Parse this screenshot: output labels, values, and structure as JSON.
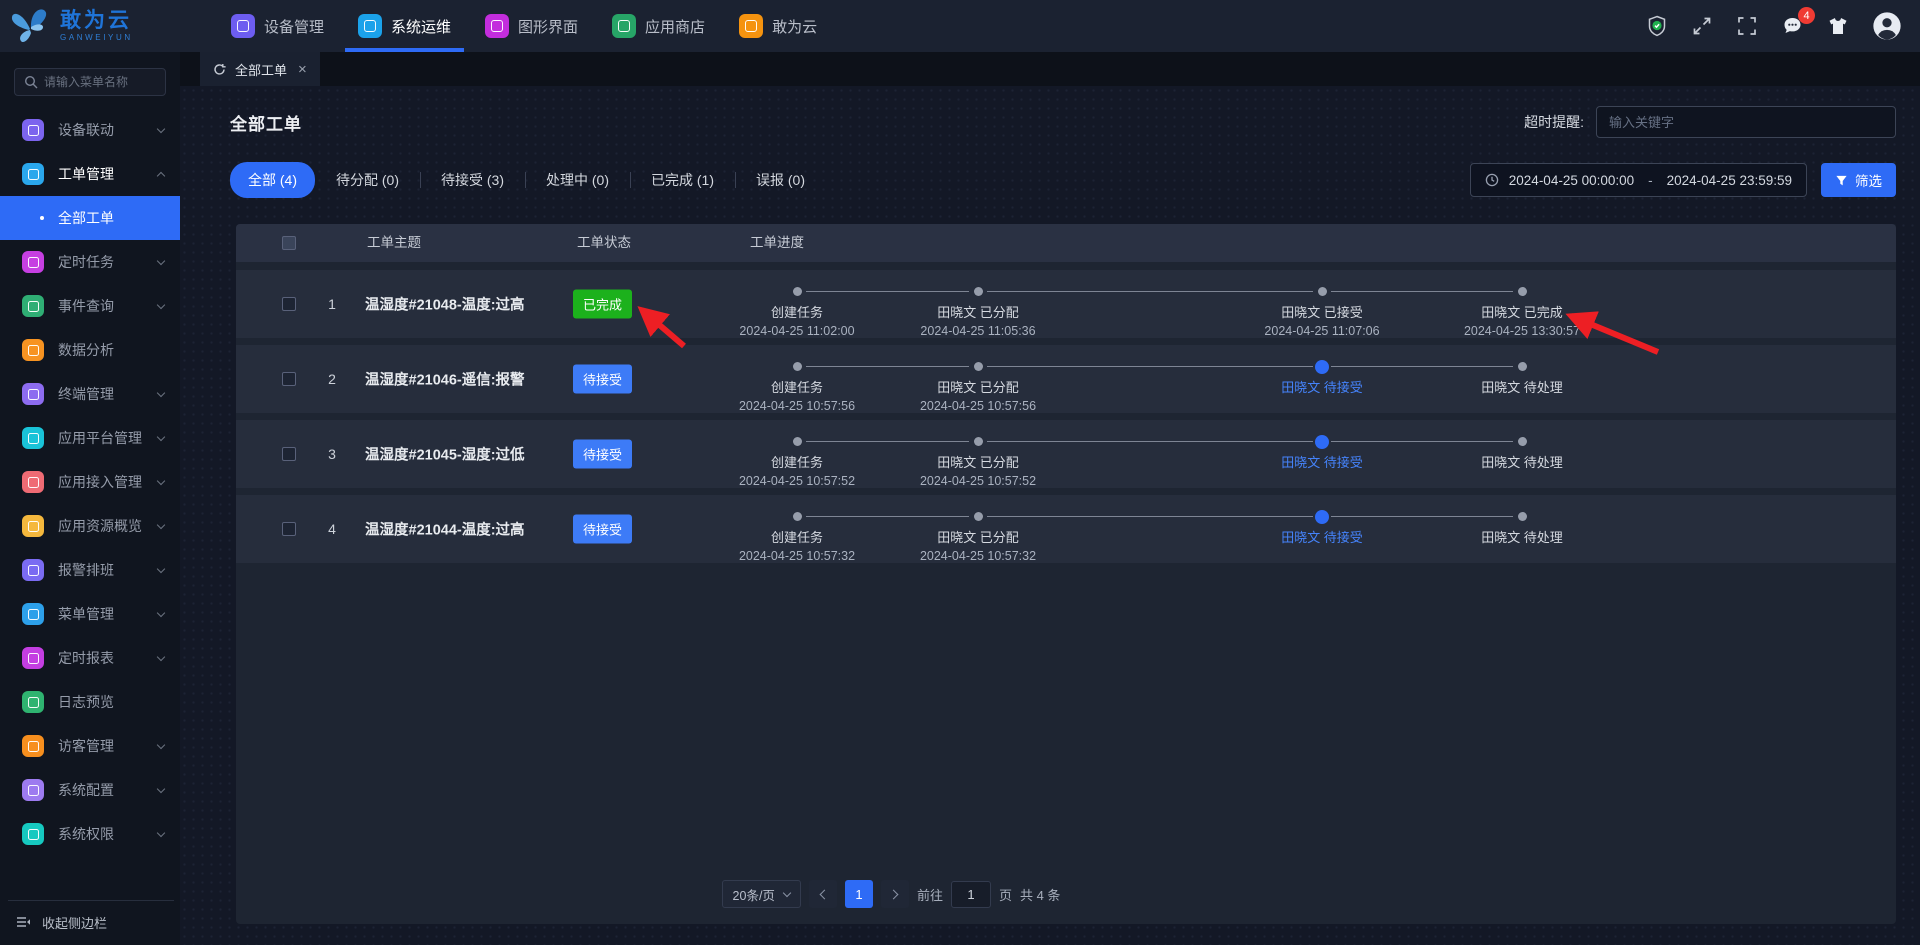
{
  "topbar": {
    "logo": {
      "title": "敢为云",
      "subtitle": "GANWEIYUN"
    },
    "nav": [
      {
        "label": "设备管理",
        "icon": "device-management-icon",
        "color": "#6d5df0",
        "active": false
      },
      {
        "label": "系统运维",
        "icon": "system-operations-icon",
        "color": "#1ba2ea",
        "active": true
      },
      {
        "label": "图形界面",
        "icon": "graphic-interface-icon",
        "color": "#c32ddd",
        "active": false
      },
      {
        "label": "应用商店",
        "icon": "app-store-icon",
        "color": "#27a567",
        "active": false
      },
      {
        "label": "敢为云",
        "icon": "ganweiyun-cloud-icon",
        "color": "#f5930f",
        "active": false
      }
    ],
    "message_count": "4",
    "accent_color": "#2e6bf6"
  },
  "sidebar": {
    "search_placeholder": "请输入菜单名称",
    "collapse_label": "收起侧边栏",
    "items": [
      {
        "label": "设备联动",
        "icon": "device-linkage-icon",
        "color": "#7c64ee",
        "chevron": "down"
      },
      {
        "label": "工单管理",
        "icon": "work-order-icon",
        "color": "#2aa7ec",
        "chevron": "up",
        "active": true,
        "children": [
          {
            "label": "全部工单",
            "active": true
          }
        ]
      },
      {
        "label": "定时任务",
        "icon": "scheduled-task-icon",
        "color": "#c63fe2",
        "chevron": "down"
      },
      {
        "label": "事件查询",
        "icon": "event-query-icon",
        "color": "#2fae74",
        "chevron": "down"
      },
      {
        "label": "数据分析",
        "icon": "data-analysis-icon",
        "color": "#f79321",
        "chevron": "none"
      },
      {
        "label": "终端管理",
        "icon": "terminal-management-icon",
        "color": "#8d6cf0",
        "chevron": "down"
      },
      {
        "label": "应用平台管理",
        "icon": "app-platform-icon",
        "color": "#19c3d8",
        "chevron": "down"
      },
      {
        "label": "应用接入管理",
        "icon": "app-access-icon",
        "color": "#ef6b74",
        "chevron": "down"
      },
      {
        "label": "应用资源概览",
        "icon": "app-resource-icon",
        "color": "#f5b83d",
        "chevron": "down"
      },
      {
        "label": "报警排班",
        "icon": "alarm-schedule-icon",
        "color": "#7a6bf2",
        "chevron": "down"
      },
      {
        "label": "菜单管理",
        "icon": "menu-management-icon",
        "color": "#2da0ea",
        "chevron": "down"
      },
      {
        "label": "定时报表",
        "icon": "scheduled-report-icon",
        "color": "#c43ee2",
        "chevron": "down"
      },
      {
        "label": "日志预览",
        "icon": "log-preview-icon",
        "color": "#2fb370",
        "chevron": "none"
      },
      {
        "label": "访客管理",
        "icon": "visitor-management-icon",
        "color": "#f78f1e",
        "chevron": "down"
      },
      {
        "label": "系统配置",
        "icon": "system-config-icon",
        "color": "#9d7bf0",
        "chevron": "down"
      },
      {
        "label": "系统权限",
        "icon": "system-permission-icon",
        "color": "#16c9c0",
        "chevron": "down"
      }
    ]
  },
  "tab": {
    "label": "全部工单"
  },
  "page": {
    "title": "全部工单",
    "timeout_label": "超时提醒:",
    "keyword_placeholder": "输入关键字",
    "date_start": "2024-04-25 00:00:00",
    "date_separator": "-",
    "date_end": "2024-04-25 23:59:59",
    "filter_button_label": "筛选"
  },
  "filters": [
    {
      "label": "全部 (4)",
      "active": true
    },
    {
      "label": "待分配 (0)",
      "active": false
    },
    {
      "label": "待接受 (3)",
      "active": false
    },
    {
      "label": "处理中 (0)",
      "active": false
    },
    {
      "label": "已完成 (1)",
      "active": false
    },
    {
      "label": "误报 (0)",
      "active": false
    }
  ],
  "table": {
    "headers": [
      "工单主题",
      "工单状态",
      "工单进度"
    ],
    "status_colors": {
      "success": "#1cb11c",
      "processing": "#3d7bf7"
    },
    "rows": [
      {
        "index": "1",
        "subject": "温湿度#21048-温度:过高",
        "status": "已完成",
        "status_type": "success",
        "steps": [
          {
            "label": "创建任务",
            "time": "2024-04-25 11:02:00",
            "state": "done"
          },
          {
            "label": "田晓文 已分配",
            "time": "2024-04-25 11:05:36",
            "state": "done"
          },
          {
            "label": "田晓文 已接受",
            "time": "2024-04-25 11:07:06",
            "state": "done"
          },
          {
            "label": "田晓文 已完成",
            "time": "2024-04-25 13:30:57",
            "state": "done"
          }
        ]
      },
      {
        "index": "2",
        "subject": "温湿度#21046-遥信:报警",
        "status": "待接受",
        "status_type": "processing",
        "steps": [
          {
            "label": "创建任务",
            "time": "2024-04-25 10:57:56",
            "state": "done"
          },
          {
            "label": "田晓文 已分配",
            "time": "2024-04-25 10:57:56",
            "state": "done"
          },
          {
            "label": "田晓文 待接受",
            "time": "",
            "state": "active"
          },
          {
            "label": "田晓文 待处理",
            "time": "",
            "state": "pending"
          }
        ]
      },
      {
        "index": "3",
        "subject": "温湿度#21045-湿度:过低",
        "status": "待接受",
        "status_type": "processing",
        "steps": [
          {
            "label": "创建任务",
            "time": "2024-04-25 10:57:52",
            "state": "done"
          },
          {
            "label": "田晓文 已分配",
            "time": "2024-04-25 10:57:52",
            "state": "done"
          },
          {
            "label": "田晓文 待接受",
            "time": "",
            "state": "active"
          },
          {
            "label": "田晓文 待处理",
            "time": "",
            "state": "pending"
          }
        ]
      },
      {
        "index": "4",
        "subject": "温湿度#21044-温度:过高",
        "status": "待接受",
        "status_type": "processing",
        "steps": [
          {
            "label": "创建任务",
            "time": "2024-04-25 10:57:32",
            "state": "done"
          },
          {
            "label": "田晓文 已分配",
            "time": "2024-04-25 10:57:32",
            "state": "done"
          },
          {
            "label": "田晓文 待接受",
            "time": "",
            "state": "active"
          },
          {
            "label": "田晓文 待处理",
            "time": "",
            "state": "pending"
          }
        ]
      }
    ]
  },
  "pagination": {
    "page_size": "20条/页",
    "current_page": "1",
    "goto_label": "前往",
    "goto_value": "1",
    "page_label": "页",
    "total_label": "共 4 条"
  }
}
